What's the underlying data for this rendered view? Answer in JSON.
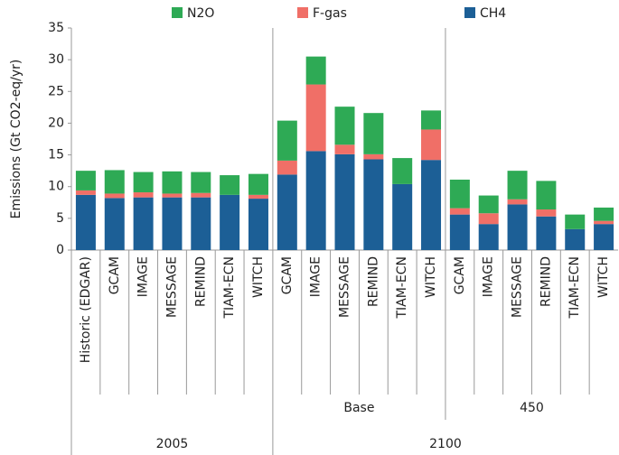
{
  "chart_data": {
    "type": "stacked-bar",
    "y_label": "Emissions (Gt CO2-eq/yr)",
    "categories": [
      "Historic (EDGAR)",
      "GCAM",
      "IMAGE",
      "MESSAGE",
      "REMIND",
      "TIAM-ECN",
      "WITCH",
      "GCAM",
      "IMAGE",
      "MESSAGE",
      "REMIND",
      "TIAM-ECN",
      "WITCH",
      "GCAM",
      "IMAGE",
      "MESSAGE",
      "REMIND",
      "TIAM-ECN",
      "WITCH"
    ],
    "scenario": [
      null,
      null,
      null,
      null,
      null,
      null,
      null,
      "Base",
      "Base",
      "Base",
      "Base",
      "Base",
      "Base",
      "450",
      "450",
      "450",
      "450",
      "450",
      "450"
    ],
    "year": [
      "2005",
      "2005",
      "2005",
      "2005",
      "2005",
      "2005",
      "2005",
      "2100",
      "2100",
      "2100",
      "2100",
      "2100",
      "2100",
      "2100",
      "2100",
      "2100",
      "2100",
      "2100",
      "2100"
    ],
    "series": [
      {
        "name": "CH4",
        "color": "#1c5f96",
        "values": [
          8.7,
          8.2,
          8.3,
          8.3,
          8.3,
          8.7,
          8.1,
          11.9,
          15.6,
          15.1,
          14.3,
          10.4,
          14.2,
          5.6,
          4.1,
          7.2,
          5.3,
          3.3,
          4.1
        ]
      },
      {
        "name": "F-gas",
        "color": "#f06f67",
        "values": [
          0.7,
          0.7,
          0.8,
          0.6,
          0.7,
          0,
          0.6,
          2.2,
          10.5,
          1.5,
          0.8,
          0,
          4.8,
          1.0,
          1.7,
          0.8,
          1.1,
          0,
          0.5
        ]
      },
      {
        "name": "N2O",
        "color": "#2eaa55",
        "values": [
          3.1,
          3.7,
          3.2,
          3.5,
          3.3,
          3.1,
          3.3,
          6.3,
          4.4,
          6.0,
          6.5,
          4.1,
          3.0,
          4.5,
          2.8,
          4.5,
          4.5,
          2.3,
          2.1
        ]
      }
    ],
    "ylim": [
      0,
      35
    ],
    "yticks": [
      0,
      5,
      10,
      15,
      20,
      25,
      30,
      35
    ]
  }
}
